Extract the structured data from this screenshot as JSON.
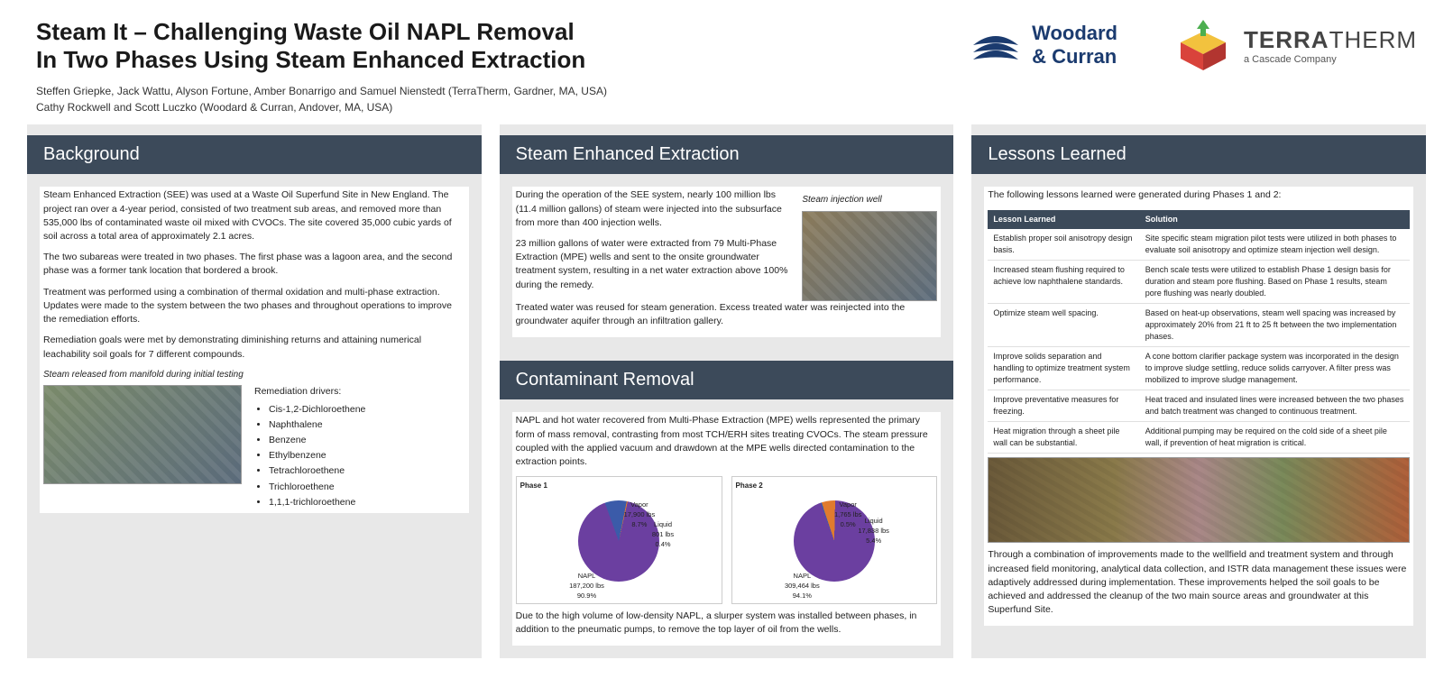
{
  "header": {
    "title_line1": "Steam It – Challenging Waste Oil NAPL Removal",
    "title_line2": "In Two Phases Using Steam Enhanced Extraction",
    "authors_line1": "Steffen Griepke, Jack Wattu, Alyson Fortune, Amber Bonarrigo and Samuel Nienstedt (TerraTherm, Gardner, MA, USA)",
    "authors_line2": "Cathy Rockwell and Scott Luczko (Woodard & Curran, Andover, MA, USA)",
    "logo_wc_text1": "Woodard",
    "logo_wc_text2": "& Curran",
    "logo_tt_main": "TERRA",
    "logo_tt_light": "THERM",
    "logo_tt_sub": "a Cascade Company"
  },
  "colors": {
    "header_bar": "#3c4a5a",
    "panel_bg": "#e8e8e8",
    "wc_blue": "#1b3b6f",
    "tt_red": "#d9433b",
    "tt_yellow": "#f2c23e",
    "tt_green": "#4caf50",
    "pie_purple": "#6b3fa0",
    "pie_blue": "#3b5ba9",
    "pie_orange": "#e07b2e"
  },
  "background": {
    "heading": "Background",
    "p1": "Steam Enhanced Extraction (SEE) was used at a Waste Oil Superfund Site in New England. The project ran over a 4-year period, consisted of two treatment sub areas, and removed more than 535,000 lbs of contaminated waste oil mixed with CVOCs. The site covered 35,000 cubic yards of soil across a total area of approximately 2.1 acres.",
    "p2": "The two subareas were treated in two phases. The first phase was a lagoon area, and the second phase was a former tank location that bordered a brook.",
    "p3": "Treatment was performed using a combination of thermal oxidation and multi-phase extraction. Updates were made to the system between the two phases and throughout operations to improve the remediation efforts.",
    "p4": "Remediation goals were met by demonstrating diminishing returns and attaining numerical leachability soil goals for 7 different compounds.",
    "img_caption": "Steam released from manifold during initial testing",
    "drivers_label": "Remediation drivers:",
    "drivers": [
      "Cis-1,2-Dichloroethene",
      "Naphthalene",
      "Benzene",
      "Ethylbenzene",
      "Tetrachloroethene",
      "Trichloroethene",
      "1,1,1-trichloroethene"
    ]
  },
  "see": {
    "heading": "Steam Enhanced Extraction",
    "p1": "During the operation of the SEE system, nearly 100 million lbs (11.4 million gallons) of steam were injected into the subsurface from more than 400 injection wells.",
    "p2": "23 million gallons of water were extracted from 79 Multi-Phase Extraction (MPE) wells and sent to the onsite groundwater treatment system, resulting in a net water extraction above 100% during the remedy.",
    "p3": "Treated water was reused for steam generation. Excess treated water was reinjected into the groundwater aquifer through an infiltration gallery.",
    "img_caption": "Steam injection well"
  },
  "contaminant": {
    "heading": "Contaminant Removal",
    "p1": "NAPL and hot water recovered from Multi-Phase Extraction (MPE) wells represented the primary form of mass removal, contrasting from most TCH/ERH sites treating CVOCs. The steam pressure coupled with the applied vacuum and drawdown at the MPE wells directed contamination to the extraction points.",
    "p2": "Due to the high volume of low-density NAPL, a slurper system was installed between phases, in addition to the pneumatic pumps, to remove the top layer of oil from the wells.",
    "phase1": {
      "title": "Phase 1",
      "napl_label": "NAPL",
      "napl_value": "187,200 lbs",
      "napl_pct": "90.9%",
      "vapor_label": "Vapor",
      "vapor_value": "17,900 lbs",
      "vapor_pct": "8.7%",
      "liquid_label": "Liquid",
      "liquid_value": "801 lbs",
      "liquid_pct": "0.4%",
      "slices": {
        "napl": 90.9,
        "vapor": 8.7,
        "liquid": 0.4
      },
      "colors": {
        "napl": "#6b3fa0",
        "vapor": "#3b5ba9",
        "liquid": "#e07b2e"
      }
    },
    "phase2": {
      "title": "Phase 2",
      "napl_label": "NAPL",
      "napl_value": "309,464 lbs",
      "napl_pct": "94.1%",
      "vapor_label": "Vapor",
      "vapor_value": "1,765 lbs",
      "vapor_pct": "0.5%",
      "liquid_label": "Liquid",
      "liquid_value": "17,838 lbs",
      "liquid_pct": "5.4%",
      "slices": {
        "napl": 94.1,
        "vapor": 0.5,
        "liquid": 5.4
      },
      "colors": {
        "napl": "#6b3fa0",
        "vapor": "#3b5ba9",
        "liquid": "#e07b2e"
      }
    }
  },
  "lessons": {
    "heading": "Lessons Learned",
    "intro": "The following lessons learned were generated during Phases 1 and 2:",
    "col1": "Lesson Learned",
    "col2": "Solution",
    "rows": [
      {
        "l": "Establish proper soil anisotropy design basis.",
        "s": "Site specific steam migration pilot tests were utilized in both phases to evaluate soil anisotropy and optimize steam injection well design."
      },
      {
        "l": "Increased steam flushing required to achieve low naphthalene standards.",
        "s": "Bench scale tests were utilized to establish Phase 1 design basis for duration and steam pore flushing. Based on Phase 1 results, steam pore flushing was nearly doubled."
      },
      {
        "l": "Optimize steam well spacing.",
        "s": "Based on heat-up observations, steam well spacing was increased by approximately 20% from 21 ft to 25 ft between the two implementation phases."
      },
      {
        "l": "Improve solids separation and handling to optimize treatment system performance.",
        "s": "A cone bottom clarifier package system was incorporated in the design to improve sludge settling, reduce solids carryover. A filter press was mobilized to improve sludge management."
      },
      {
        "l": "Improve preventative measures for freezing.",
        "s": "Heat traced and insulated lines were increased between the two phases and batch treatment was changed to continuous treatment."
      },
      {
        "l": "Heat migration through a sheet pile wall can be substantial.",
        "s": "Additional pumping may be required on the cold side of a sheet pile wall, if prevention of heat migration is critical."
      }
    ],
    "closing": "Through a combination of improvements made to the wellfield and treatment system and through increased field monitoring, analytical data collection, and ISTR data management these issues were adaptively addressed during implementation. These improvements helped the soil goals to be achieved and addressed the cleanup of the two main source areas and groundwater at this Superfund Site."
  }
}
